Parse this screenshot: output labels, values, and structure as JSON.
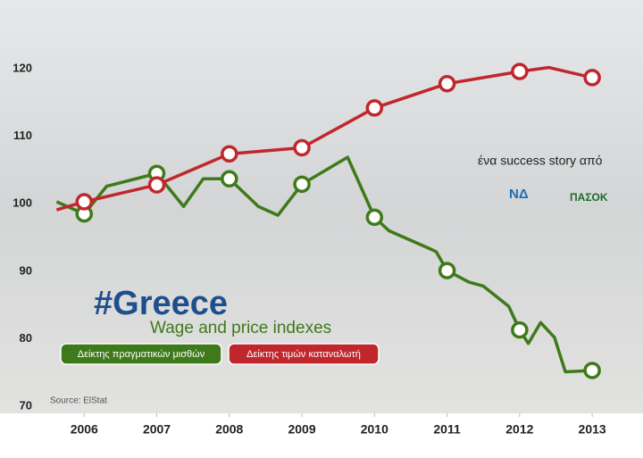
{
  "chart_data": {
    "type": "line",
    "title": "#Greece",
    "subtitle": "Wage and price indexes",
    "source": "Source: ElStat",
    "annotation": "ένα success story από",
    "logos": [
      "ΝΔ",
      "ΠΑΣΟΚ"
    ],
    "xlim": [
      2004.84,
      2013.7
    ],
    "ylim": [
      70,
      130.2
    ],
    "xticks": [
      2006,
      2007,
      2008,
      2009,
      2010,
      2011,
      2012,
      2013
    ],
    "yticks": [
      70,
      80,
      90,
      100,
      110,
      120
    ],
    "grid": false,
    "series": [
      {
        "name": "Δείκτης πραγματικών μισθών",
        "color": "#3f7a1a",
        "x": [
          2005.62,
          2006,
          2006.31,
          2007,
          2007.37,
          2007.64,
          2008,
          2008.4,
          2008.67,
          2009,
          2009.63,
          2010,
          2010.2,
          2010.75,
          2010.85,
          2011,
          2011.3,
          2011.5,
          2011.85,
          2012,
          2012.12,
          2012.29,
          2012.48,
          2012.63,
          2013
        ],
        "values": [
          100.3,
          98.5,
          102.6,
          104.5,
          99.6,
          103.7,
          103.7,
          99.6,
          98.3,
          102.9,
          106.9,
          98.0,
          96.0,
          93.4,
          92.9,
          90.1,
          88.4,
          87.8,
          84.8,
          81.3,
          79.3,
          82.4,
          80.2,
          75.1,
          75.3
        ]
      },
      {
        "name": "Δείκτης τιμών καταναλωτή",
        "color": "#c0272d",
        "x": [
          2005.62,
          2006,
          2007,
          2008,
          2009,
          2010,
          2011,
          2012,
          2012.4,
          2013
        ],
        "values": [
          99.1,
          100.3,
          102.8,
          107.4,
          108.3,
          114.2,
          117.8,
          119.6,
          120.2,
          118.7
        ]
      }
    ]
  }
}
